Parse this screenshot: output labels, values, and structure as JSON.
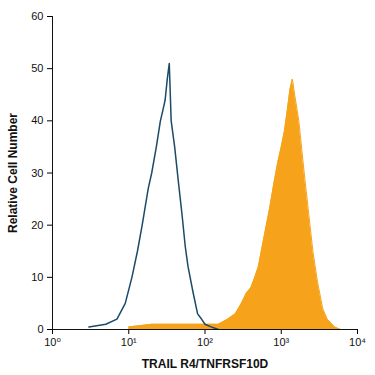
{
  "chart_data": {
    "type": "line",
    "xlabel": "TRAIL R4/TNFRSF10D",
    "ylabel": "Relative Cell Number",
    "log": "x",
    "grid": false,
    "xlim": [
      1,
      10000
    ],
    "xticks": [
      {
        "value": 1,
        "label": "10⁰"
      },
      {
        "value": 10,
        "label": "10¹"
      },
      {
        "value": 100,
        "label": "10²"
      },
      {
        "value": 1000,
        "label": "10³"
      },
      {
        "value": 10000,
        "label": "10⁴"
      }
    ],
    "ylim": [
      0,
      60
    ],
    "yticks": [
      0,
      10,
      20,
      30,
      40,
      50,
      60
    ],
    "series": [
      {
        "type": "area",
        "color": "#f7a21b",
        "x": [
          10,
          20,
          50,
          100,
          150,
          200,
          250,
          300,
          350,
          400,
          450,
          500,
          600,
          700,
          800,
          900,
          1000,
          1100,
          1200,
          1300,
          1400,
          1500,
          1700,
          2000,
          2300,
          2600,
          3000,
          3500,
          4000,
          5000,
          6000
        ],
        "values": [
          0.5,
          1,
          1,
          1,
          1,
          2,
          3,
          5,
          7,
          8,
          10,
          12,
          18,
          23,
          28,
          32,
          35,
          38,
          42,
          46,
          48,
          45,
          40,
          30,
          22,
          15,
          9,
          4,
          2,
          0.5,
          0
        ]
      },
      {
        "type": "line",
        "color": "#1b4a6b",
        "x": [
          3,
          5,
          7,
          9,
          11,
          13,
          15,
          18,
          20,
          23,
          26,
          28,
          30,
          32,
          34,
          36,
          40,
          45,
          50,
          55,
          60,
          70,
          80,
          90,
          100,
          120,
          150
        ],
        "values": [
          0.5,
          1,
          2,
          5,
          10,
          15,
          20,
          27,
          30,
          35,
          40,
          42,
          44,
          48,
          51,
          40,
          35,
          28,
          22,
          16,
          12,
          7,
          3,
          2,
          1,
          0.5,
          0
        ]
      }
    ]
  }
}
